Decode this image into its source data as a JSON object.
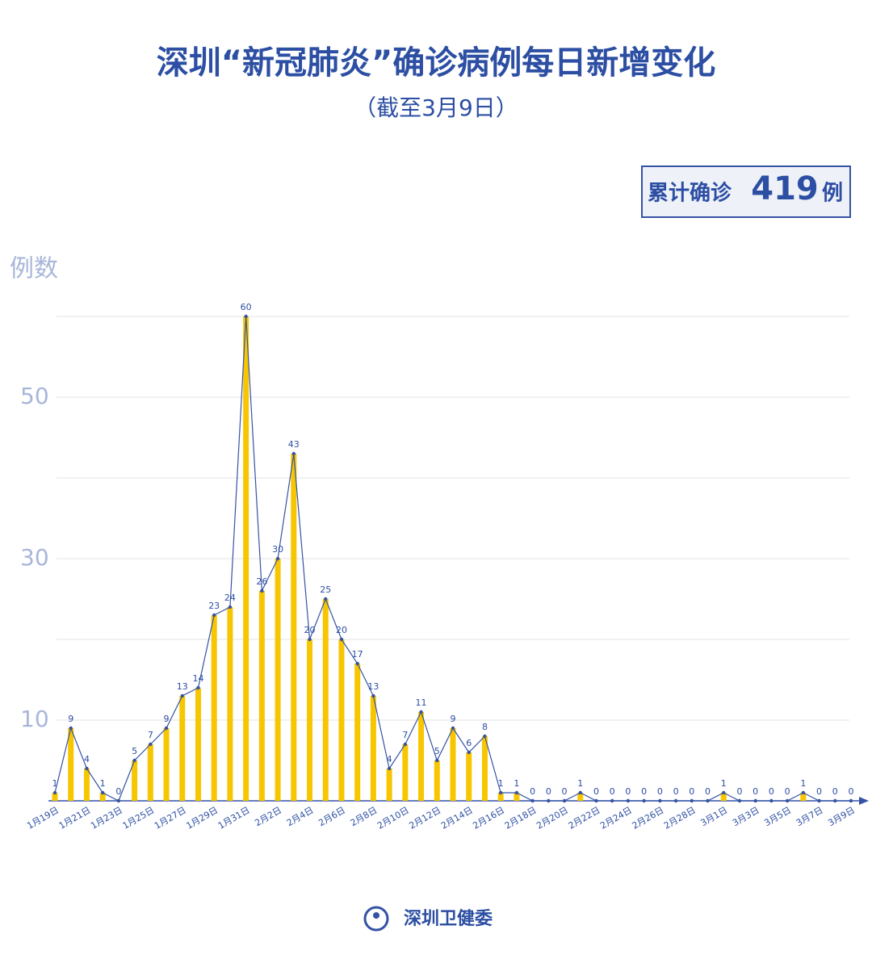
{
  "chart_data": {
    "type": "bar-line",
    "title": "深圳“新冠肺炎”确诊病例每日新增变化",
    "subtitle": "（截至3月9日）",
    "total": {
      "label": "累计确诊",
      "value": 419,
      "unit": "例"
    },
    "ylabel": "例数",
    "categories": [
      "1月19日",
      null,
      "1月21日",
      null,
      "1月23日",
      null,
      "1月25日",
      null,
      "1月27日",
      null,
      "1月29日",
      null,
      "1月31日",
      null,
      "2月2日",
      null,
      "2月4日",
      null,
      "2月6日",
      null,
      "2月8日",
      null,
      "2月10日",
      null,
      "2月12日",
      null,
      "2月14日",
      null,
      "2月16日",
      null,
      "2月18日",
      null,
      "2月20日",
      null,
      "2月22日",
      null,
      "2月24日",
      null,
      "2月26日",
      null,
      "2月28日",
      null,
      "3月1日",
      null,
      "3月3日",
      null,
      "3月5日",
      null,
      "3月7日",
      null,
      "3月9日"
    ],
    "values": [
      1,
      9,
      4,
      1,
      0,
      5,
      7,
      9,
      13,
      14,
      23,
      24,
      60,
      26,
      30,
      43,
      20,
      25,
      20,
      17,
      13,
      4,
      7,
      11,
      5,
      9,
      6,
      8,
      1,
      1,
      0,
      0,
      0,
      1,
      0,
      0,
      0,
      0,
      0,
      0,
      0,
      0,
      1,
      0,
      0,
      0,
      0,
      1,
      0,
      0,
      0
    ],
    "bar_color": "#f7c600",
    "line_color": "#3553a5",
    "ylim": [
      0,
      60
    ],
    "yticks": [
      10,
      30,
      50
    ],
    "grid_values": [
      10,
      20,
      30,
      40,
      50,
      60
    ],
    "grid": true,
    "source": "深圳卫健委"
  }
}
